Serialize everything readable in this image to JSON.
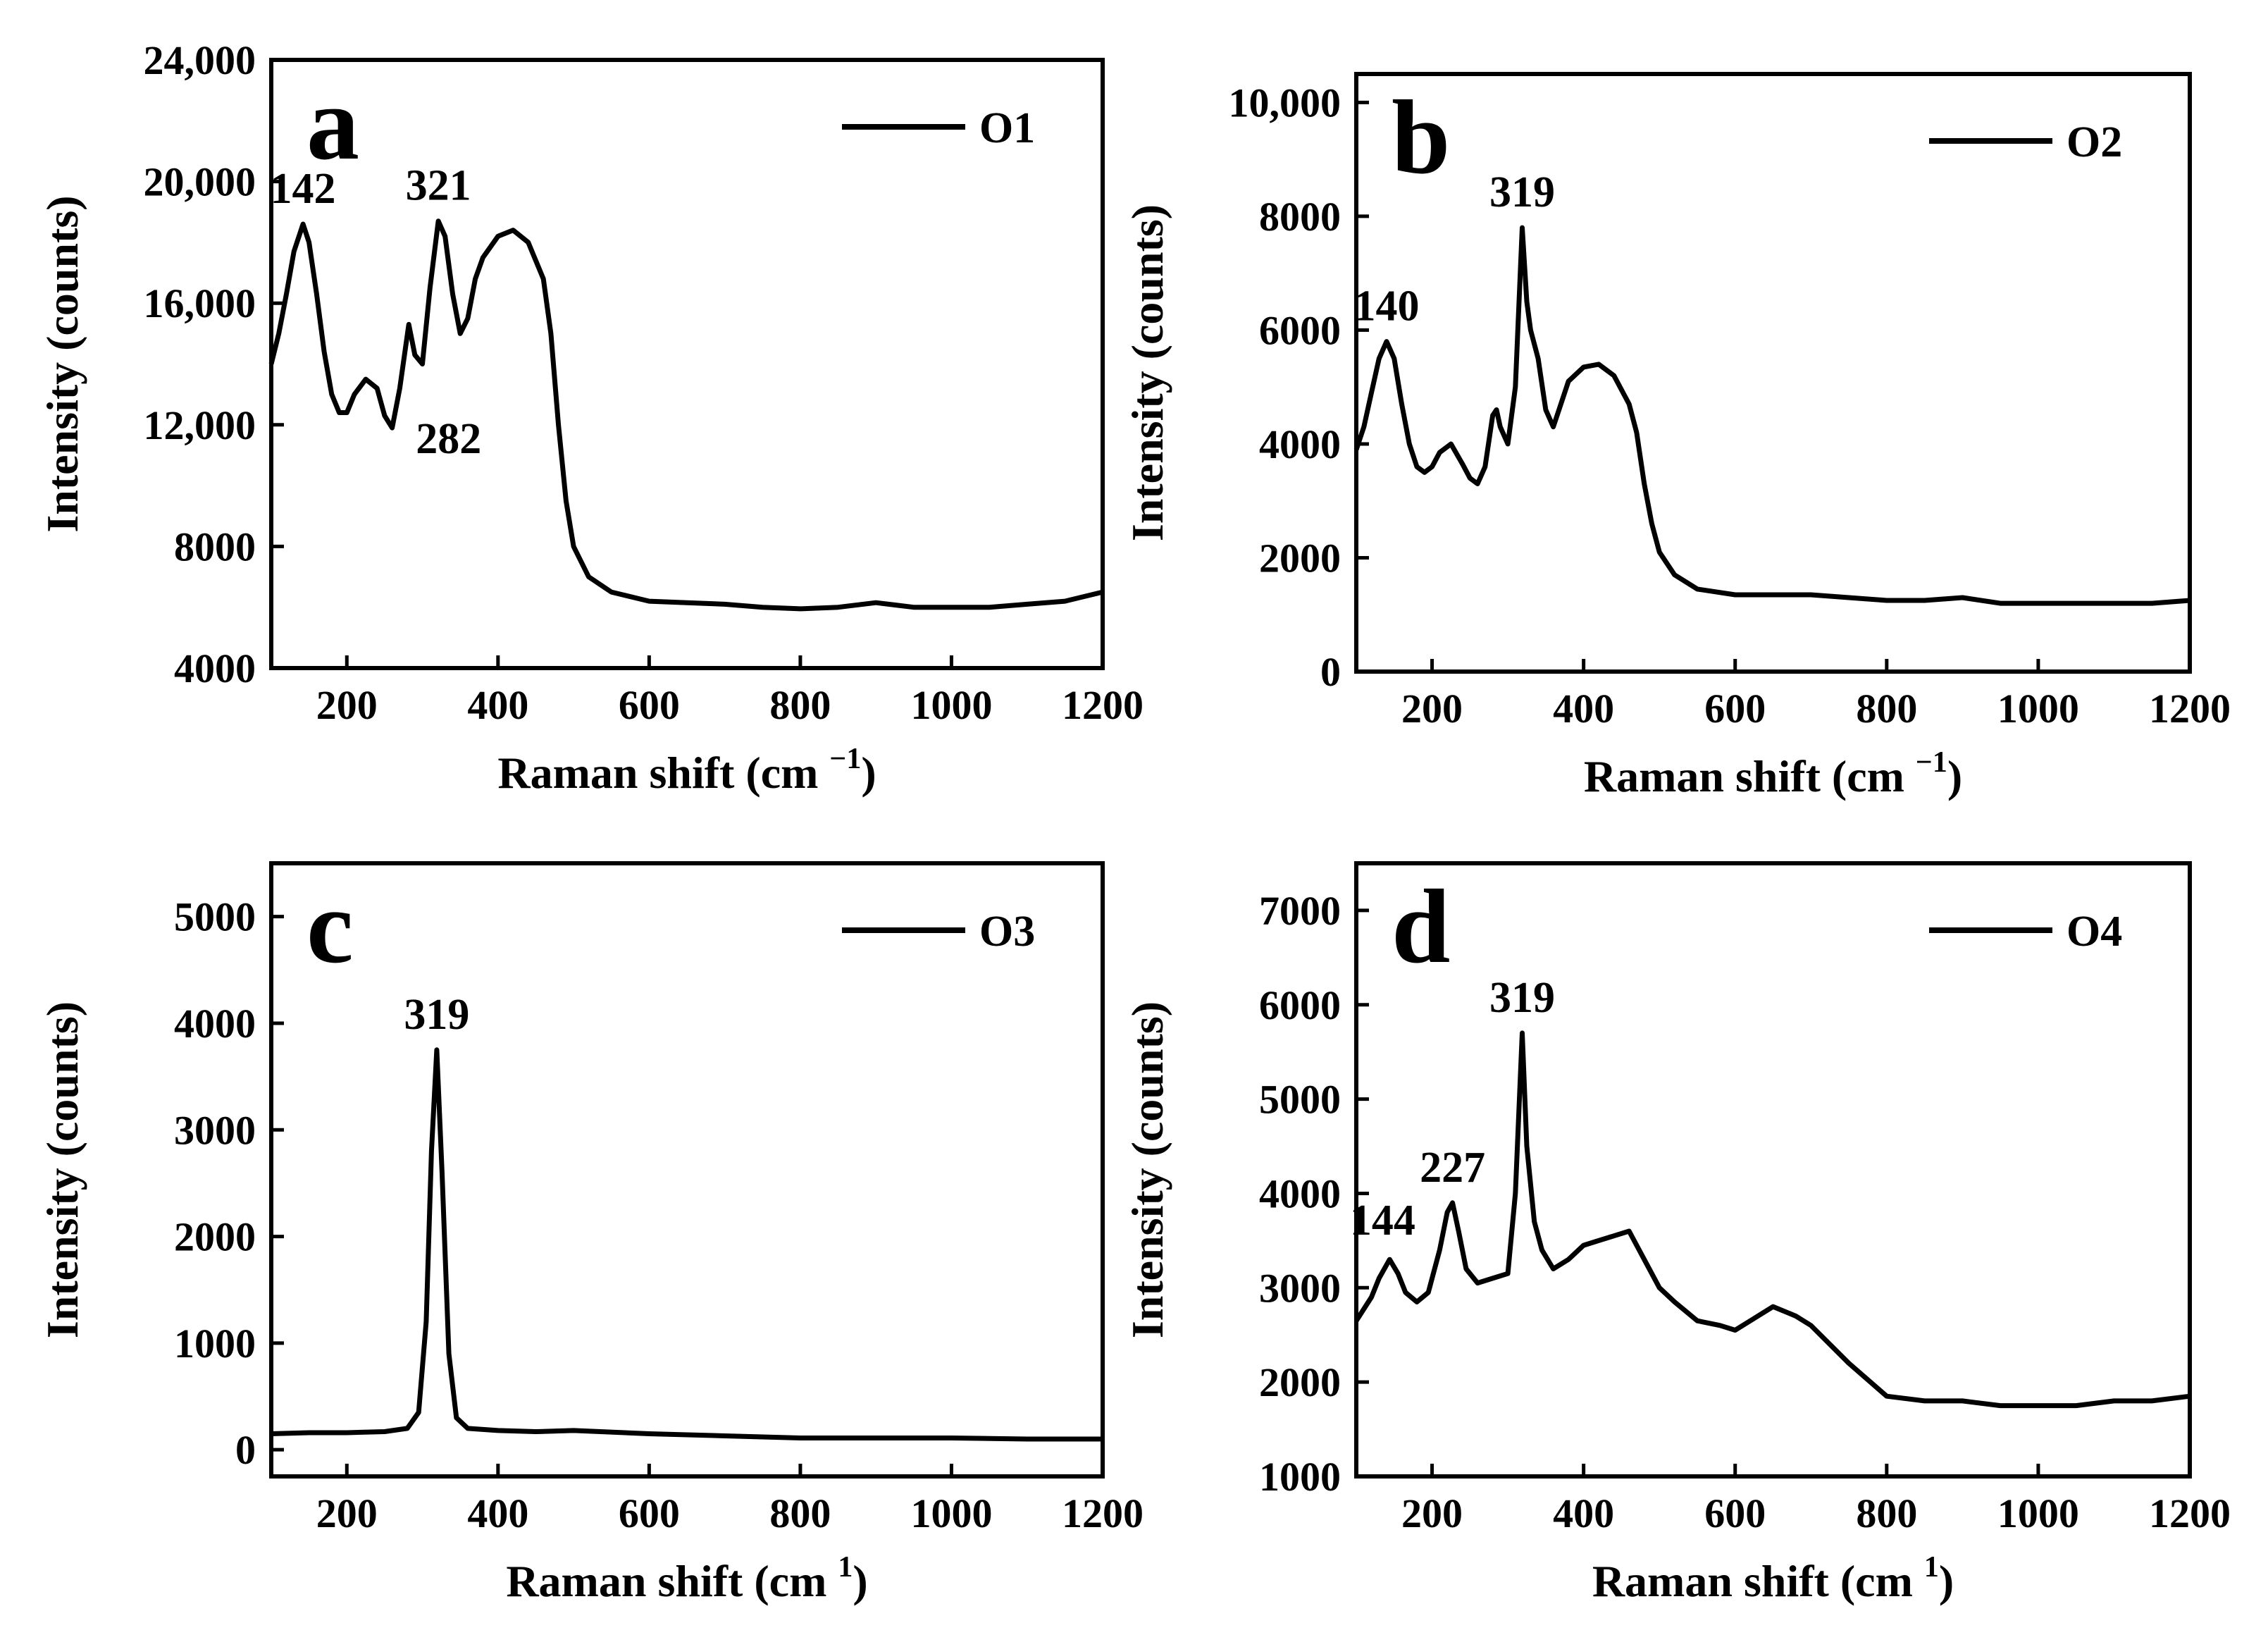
{
  "chart_data": [
    {
      "type": "line",
      "panel": "a",
      "legend": "O1",
      "xlabel": "Raman shift (cm",
      "xlabel_sup": "−1",
      "xlabel_close": ")",
      "ylabel": "Intensity (counts)",
      "xlim": [
        100,
        1200
      ],
      "ylim": [
        4000,
        24000
      ],
      "xticks": [
        200,
        400,
        600,
        800,
        1000,
        1200
      ],
      "yticks": [
        4000,
        8000,
        12000,
        16000,
        20000,
        24000
      ],
      "yticklabels": [
        "4000",
        "8000",
        "12,000",
        "16,000",
        "20,000",
        "24,000"
      ],
      "annotations": [
        {
          "text": "142",
          "x": 142,
          "y": 18600
        },
        {
          "text": "321",
          "x": 321,
          "y": 18700
        },
        {
          "text": "282",
          "x": 282,
          "y": 15300
        }
      ],
      "series": [
        {
          "name": "O1",
          "x": [
            100,
            110,
            120,
            130,
            142,
            150,
            160,
            170,
            180,
            190,
            200,
            210,
            225,
            240,
            250,
            260,
            270,
            282,
            290,
            300,
            310,
            321,
            330,
            340,
            350,
            360,
            370,
            380,
            400,
            420,
            440,
            460,
            470,
            480,
            490,
            500,
            520,
            550,
            600,
            650,
            700,
            750,
            800,
            850,
            900,
            950,
            1000,
            1050,
            1100,
            1150,
            1200
          ],
          "y": [
            14000,
            15000,
            16300,
            17700,
            18600,
            18000,
            16300,
            14400,
            13000,
            12400,
            12400,
            13000,
            13500,
            13200,
            12300,
            11900,
            13200,
            15300,
            14300,
            14000,
            16500,
            18700,
            18200,
            16300,
            15000,
            15500,
            16800,
            17500,
            18200,
            18400,
            18000,
            16800,
            15000,
            12000,
            9500,
            8000,
            7000,
            6500,
            6200,
            6150,
            6100,
            6000,
            5950,
            6000,
            6150,
            6000,
            6000,
            6000,
            6100,
            6200,
            6500
          ]
        }
      ]
    },
    {
      "type": "line",
      "panel": "b",
      "legend": "O2",
      "xlabel": "Raman shift (cm",
      "xlabel_sup": "−1",
      "xlabel_close": ")",
      "ylabel": "Intensity (counts)",
      "xlim": [
        100,
        1200
      ],
      "ylim": [
        0,
        10500
      ],
      "xticks": [
        200,
        400,
        600,
        800,
        1000,
        1200
      ],
      "yticks": [
        0,
        2000,
        4000,
        6000,
        8000,
        10000
      ],
      "yticklabels": [
        "0",
        "2000",
        "4000",
        "6000",
        "8000",
        "10,000"
      ],
      "annotations": [
        {
          "text": "140",
          "x": 140,
          "y": 5800
        },
        {
          "text": "319",
          "x": 319,
          "y": 7800
        }
      ],
      "series": [
        {
          "name": "O2",
          "x": [
            100,
            110,
            120,
            130,
            140,
            150,
            160,
            170,
            180,
            190,
            200,
            210,
            225,
            240,
            250,
            260,
            270,
            280,
            285,
            290,
            300,
            310,
            319,
            325,
            330,
            340,
            350,
            360,
            370,
            380,
            400,
            420,
            440,
            460,
            470,
            480,
            490,
            500,
            520,
            550,
            600,
            650,
            700,
            750,
            800,
            850,
            900,
            950,
            1000,
            1050,
            1100,
            1150,
            1200
          ],
          "y": [
            3900,
            4300,
            4900,
            5500,
            5800,
            5500,
            4700,
            4000,
            3600,
            3500,
            3600,
            3850,
            4000,
            3650,
            3400,
            3300,
            3600,
            4500,
            4600,
            4300,
            4000,
            5000,
            7800,
            6500,
            6000,
            5500,
            4600,
            4300,
            4700,
            5100,
            5350,
            5400,
            5200,
            4700,
            4200,
            3300,
            2600,
            2100,
            1700,
            1450,
            1350,
            1350,
            1350,
            1300,
            1250,
            1250,
            1300,
            1200,
            1200,
            1200,
            1200,
            1200,
            1250
          ]
        }
      ]
    },
    {
      "type": "line",
      "panel": "c",
      "legend": "O3",
      "xlabel": "Raman shift (cm",
      "xlabel_sup": "1",
      "xlabel_close": ")",
      "ylabel": "Intensity (counts)",
      "xlim": [
        100,
        1200
      ],
      "ylim": [
        -250,
        5500
      ],
      "xticks": [
        200,
        400,
        600,
        800,
        1000,
        1200
      ],
      "yticks": [
        0,
        1000,
        2000,
        3000,
        4000,
        5000
      ],
      "yticklabels": [
        "0",
        "1000",
        "2000",
        "3000",
        "4000",
        "5000"
      ],
      "annotations": [
        {
          "text": "319",
          "x": 319,
          "y": 3750
        }
      ],
      "series": [
        {
          "name": "O3",
          "x": [
            100,
            150,
            200,
            250,
            280,
            295,
            305,
            312,
            319,
            326,
            335,
            345,
            360,
            400,
            450,
            500,
            600,
            700,
            800,
            900,
            1000,
            1100,
            1200
          ],
          "y": [
            150,
            160,
            160,
            170,
            200,
            350,
            1200,
            2800,
            3750,
            2600,
            900,
            300,
            200,
            180,
            170,
            180,
            150,
            130,
            110,
            110,
            110,
            100,
            100
          ]
        }
      ]
    },
    {
      "type": "line",
      "panel": "d",
      "legend": "O4",
      "xlabel": "Raman shift (cm",
      "xlabel_sup": "1",
      "xlabel_close": ")",
      "ylabel": "Intensity (counts)",
      "xlim": [
        100,
        1200
      ],
      "ylim": [
        1000,
        7500
      ],
      "xticks": [
        200,
        400,
        600,
        800,
        1000,
        1200
      ],
      "yticks": [
        1000,
        2000,
        3000,
        4000,
        5000,
        6000,
        7000
      ],
      "yticklabels": [
        "1000",
        "2000",
        "3000",
        "4000",
        "5000",
        "6000",
        "7000"
      ],
      "annotations": [
        {
          "text": "144",
          "x": 144,
          "y": 3300
        },
        {
          "text": "227",
          "x": 227,
          "y": 3900
        },
        {
          "text": "319",
          "x": 319,
          "y": 5700
        }
      ],
      "series": [
        {
          "name": "O4",
          "x": [
            100,
            120,
            130,
            144,
            155,
            165,
            180,
            195,
            210,
            220,
            227,
            235,
            245,
            260,
            280,
            300,
            310,
            319,
            325,
            335,
            345,
            360,
            380,
            400,
            420,
            440,
            460,
            480,
            500,
            520,
            550,
            580,
            600,
            620,
            650,
            680,
            700,
            750,
            800,
            850,
            900,
            950,
            1000,
            1050,
            1100,
            1150,
            1200
          ],
          "y": [
            2650,
            2900,
            3100,
            3300,
            3150,
            2950,
            2850,
            2950,
            3400,
            3800,
            3900,
            3600,
            3200,
            3050,
            3100,
            3150,
            4000,
            5700,
            4500,
            3700,
            3400,
            3200,
            3300,
            3450,
            3500,
            3550,
            3600,
            3300,
            3000,
            2850,
            2650,
            2600,
            2550,
            2650,
            2800,
            2700,
            2600,
            2200,
            1850,
            1800,
            1800,
            1750,
            1750,
            1750,
            1800,
            1800,
            1850
          ]
        }
      ]
    }
  ]
}
